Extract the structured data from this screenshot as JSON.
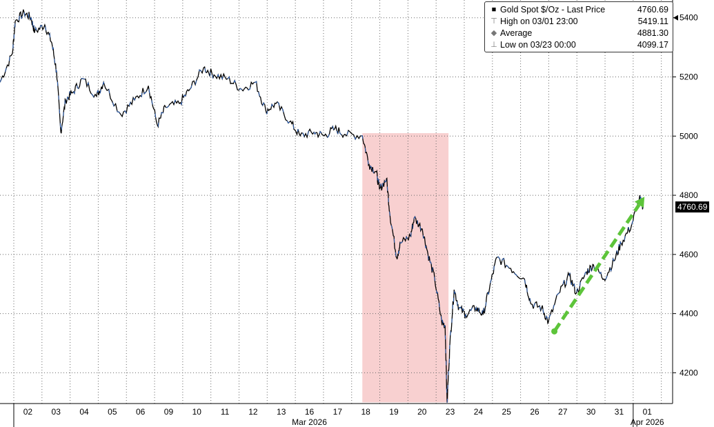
{
  "chart_data": {
    "type": "line",
    "title": "Gold Spot $/Oz - Last Price",
    "x_unit": "trading day index (0 = start of 02 Mar session)",
    "xlim": [
      -0.49,
      23.4
    ],
    "ylim": [
      4096,
      5460
    ],
    "yticks": [
      4200,
      4400,
      4600,
      4800,
      5000,
      5200,
      5400
    ],
    "xtick_labels": [
      "02",
      "03",
      "04",
      "05",
      "06",
      "09",
      "10",
      "11",
      "12",
      "13",
      "16",
      "17",
      "18",
      "19",
      "20",
      "23",
      "24",
      "25",
      "26",
      "27",
      "30",
      "31",
      "01"
    ],
    "month_labels": [
      {
        "label": "Mar 2026",
        "day_index": 10.5
      },
      {
        "label": "Apr 2026",
        "day_index": 22.5
      }
    ],
    "grid": true,
    "series": [
      {
        "name": "Gold Spot $/Oz",
        "x": [
          -0.49,
          -0.05,
          0.05,
          0.37,
          0.61,
          0.74,
          1.1,
          1.35,
          1.52,
          1.67,
          1.84,
          2.08,
          2.45,
          2.94,
          3.19,
          3.8,
          4.29,
          4.78,
          5.1,
          5.39,
          5.88,
          6.25,
          6.74,
          7.11,
          7.6,
          8.09,
          8.58,
          8.95,
          9.31,
          9.8,
          10.17,
          10.66,
          11.03,
          11.4,
          11.76,
          12.38,
          12.62,
          12.87,
          12.99,
          13.24,
          13.36,
          13.6,
          13.73,
          14.09,
          14.22,
          14.51,
          14.71,
          14.95,
          15.2,
          15.32,
          15.39,
          15.49,
          15.64,
          15.81,
          16.05,
          16.42,
          16.67,
          16.91,
          17.16,
          17.65,
          18.14,
          18.38,
          18.75,
          18.99,
          19.36,
          19.73,
          19.98,
          20.34,
          20.59,
          20.96,
          21.32,
          21.57,
          21.94,
          22.22,
          22.36
        ],
        "y": [
          5182,
          5279,
          5388,
          5417,
          5400,
          5352,
          5376,
          5315,
          5219,
          5013,
          5122,
          5146,
          5194,
          5134,
          5182,
          5073,
          5122,
          5170,
          5037,
          5098,
          5110,
          5158,
          5231,
          5207,
          5194,
          5158,
          5182,
          5086,
          5110,
          5049,
          5001,
          5013,
          5001,
          5025,
          5006,
          5001,
          4904,
          4880,
          4820,
          4856,
          4735,
          4590,
          4638,
          4662,
          4723,
          4686,
          4602,
          4517,
          4372,
          4360,
          4099,
          4300,
          4481,
          4420,
          4396,
          4420,
          4396,
          4493,
          4590,
          4553,
          4517,
          4432,
          4420,
          4372,
          4469,
          4529,
          4469,
          4541,
          4565,
          4517,
          4578,
          4638,
          4698,
          4790,
          4760.69
        ]
      }
    ],
    "annotations": {
      "shaded_region": {
        "x": [
          12.38,
          15.44
        ],
        "y": [
          4100,
          5010
        ],
        "color": "#f8d0d0"
      },
      "trend_arrow": {
        "from": [
          19.2,
          4340
        ],
        "to": [
          22.4,
          4795
        ],
        "color": "#5dc43a"
      }
    },
    "last_price_label": "4760.69",
    "legend": [
      {
        "label": "Gold Spot $/Oz - Last Price",
        "value": "4760.69",
        "icon": "black-square"
      },
      {
        "label": "High on 03/01 23:00",
        "value": "5419.11",
        "icon": "high-marker"
      },
      {
        "label": "Average",
        "value": "4881.30",
        "icon": "average-marker"
      },
      {
        "label": "Low on 03/23 00:00",
        "value": "4099.17",
        "icon": "low-marker"
      }
    ]
  }
}
